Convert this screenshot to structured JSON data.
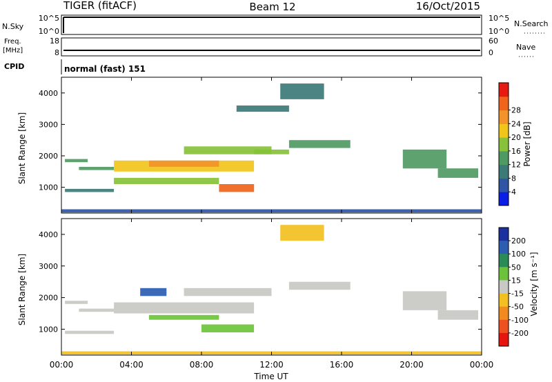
{
  "header": {
    "radar": "TIGER (fitACF)",
    "beam": "Beam 12",
    "date": "16/Oct/2015"
  },
  "strips": {
    "nsky_label": "N.Sky",
    "nsky_ticks": [
      "10^5",
      "10^0"
    ],
    "nsearch_label": "N.Search",
    "nsearch_ticks": [
      "10^5",
      "10^0"
    ],
    "freq_label_1": "Freq.",
    "freq_label_2": "[MHz]",
    "freq_ticks": [
      "18",
      "8"
    ],
    "nave_label": "Nave",
    "nave_ticks": [
      "60",
      "0"
    ],
    "cpid_label": "CPID",
    "cpid_text": "normal (fast) 151"
  },
  "axes": {
    "x_ticks": [
      "00:00",
      "04:00",
      "08:00",
      "12:00",
      "16:00",
      "20:00",
      "00:00"
    ],
    "x_label": "Time UT",
    "y_ticks": [
      "1000",
      "2000",
      "3000",
      "4000"
    ],
    "y_label": "Slant Range [km]"
  },
  "colorbars": {
    "power": {
      "label": "Power [dB]",
      "ticks": [
        "4",
        "8",
        "12",
        "16",
        "20",
        "24",
        "28"
      ],
      "colors": [
        "#0a1ee6",
        "#2f55a5",
        "#3c7a78",
        "#4f9a63",
        "#87c23a",
        "#f2c51b",
        "#f3932a",
        "#f0641c",
        "#e61a10"
      ]
    },
    "velocity": {
      "label": "Velocity [m s⁻¹]",
      "ticks": [
        "200",
        "100",
        "50",
        "15",
        "-15",
        "-50",
        "-100",
        "-200"
      ],
      "colors": [
        "#1b2f9e",
        "#2d5db0",
        "#2a8b57",
        "#6cc33b",
        "#c8c8c4",
        "#f3c021",
        "#f38a20",
        "#ee5020",
        "#e61510"
      ]
    }
  },
  "chart_data": [
    {
      "type": "heatmap",
      "title": "Power [dB]",
      "xlabel": "Time UT",
      "ylabel": "Slant Range [km]",
      "xlim": [
        0,
        24
      ],
      "ylim": [
        180,
        4500
      ],
      "zlim": [
        0,
        32
      ],
      "series": [
        {
          "x": [
            0.2,
            1.5
          ],
          "y": [
            1800,
            1900
          ],
          "value": 12
        },
        {
          "x": [
            0.2,
            3.0
          ],
          "y": [
            850,
            950
          ],
          "value": 11
        },
        {
          "x": [
            1.0,
            3.0
          ],
          "y": [
            1550,
            1650
          ],
          "value": 12
        },
        {
          "x": [
            3.0,
            9.0
          ],
          "y": [
            1100,
            1300
          ],
          "value": 16
        },
        {
          "x": [
            3.0,
            11.0
          ],
          "y": [
            1500,
            1850
          ],
          "value": 20
        },
        {
          "x": [
            5.0,
            9.0
          ],
          "y": [
            1650,
            1850
          ],
          "value": 24
        },
        {
          "x": [
            7.0,
            12.0
          ],
          "y": [
            2050,
            2300
          ],
          "value": 18
        },
        {
          "x": [
            9.0,
            11.0
          ],
          "y": [
            850,
            1100
          ],
          "value": 30
        },
        {
          "x": [
            11.0,
            13.0
          ],
          "y": [
            2050,
            2200
          ],
          "value": 18
        },
        {
          "x": [
            13.0,
            16.5
          ],
          "y": [
            2250,
            2500
          ],
          "value": 12
        },
        {
          "x": [
            10.0,
            13.0
          ],
          "y": [
            3400,
            3600
          ],
          "value": 10
        },
        {
          "x": [
            12.5,
            15.0
          ],
          "y": [
            3800,
            4300
          ],
          "value": 9
        },
        {
          "x": [
            19.5,
            22.0
          ],
          "y": [
            1600,
            2200
          ],
          "value": 13
        },
        {
          "x": [
            21.5,
            23.8
          ],
          "y": [
            1300,
            1600
          ],
          "value": 12
        },
        {
          "x": [
            0.0,
            24.0
          ],
          "y": [
            200,
            300
          ],
          "value": 6
        }
      ]
    },
    {
      "type": "heatmap",
      "title": "Velocity [m s⁻¹]",
      "xlabel": "Time UT",
      "ylabel": "Slant Range [km]",
      "xlim": [
        0,
        24
      ],
      "ylim": [
        180,
        4500
      ],
      "zlim": [
        -250,
        250
      ],
      "series": [
        {
          "x": [
            0.2,
            1.5
          ],
          "y": [
            1800,
            1900
          ],
          "value": 0
        },
        {
          "x": [
            0.2,
            3.0
          ],
          "y": [
            850,
            950
          ],
          "value": 0
        },
        {
          "x": [
            1.0,
            3.0
          ],
          "y": [
            1550,
            1650
          ],
          "value": 0
        },
        {
          "x": [
            3.0,
            11.0
          ],
          "y": [
            1500,
            1850
          ],
          "value": 0
        },
        {
          "x": [
            5.0,
            9.0
          ],
          "y": [
            1300,
            1450
          ],
          "value": 45
        },
        {
          "x": [
            7.0,
            12.0
          ],
          "y": [
            2050,
            2300
          ],
          "value": 0
        },
        {
          "x": [
            8.0,
            11.0
          ],
          "y": [
            900,
            1150
          ],
          "value": 40
        },
        {
          "x": [
            4.5,
            6.0
          ],
          "y": [
            2050,
            2300
          ],
          "value": 150
        },
        {
          "x": [
            13.0,
            16.5
          ],
          "y": [
            2250,
            2500
          ],
          "value": 0
        },
        {
          "x": [
            12.5,
            15.0
          ],
          "y": [
            3800,
            4300
          ],
          "value": -20
        },
        {
          "x": [
            19.5,
            22.0
          ],
          "y": [
            1600,
            2200
          ],
          "value": 0
        },
        {
          "x": [
            21.5,
            23.8
          ],
          "y": [
            1300,
            1600
          ],
          "value": 0
        },
        {
          "x": [
            0.0,
            24.0
          ],
          "y": [
            200,
            300
          ],
          "value": -30
        }
      ]
    }
  ]
}
